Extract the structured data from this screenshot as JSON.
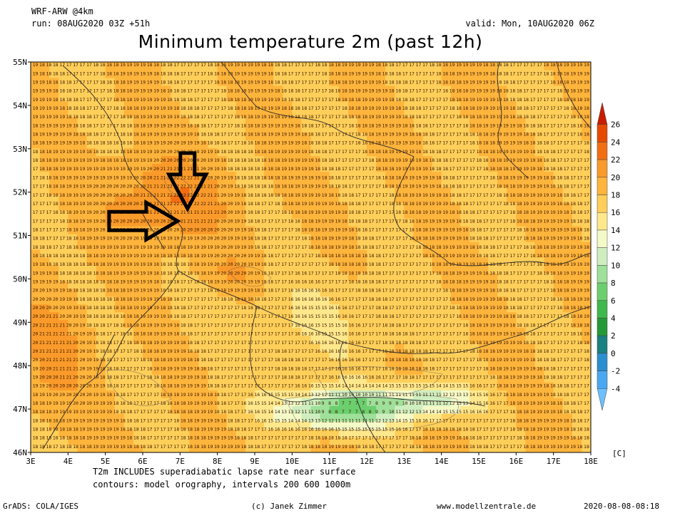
{
  "header": {
    "model": "WRF-ARW @4km",
    "run": "run: 08AUG2020 03Z +51h",
    "valid": "valid: Mon, 10AUG2020 06Z",
    "title": "Minimum temperature 2m (past 12h)"
  },
  "notes": {
    "line1": "T2m INCLUDES superadiabatic lapse rate near surface",
    "line2": "contours: model orography, intervals 200 600 1000m"
  },
  "footer": {
    "software": "GrADS: COLA/IGES",
    "copyright": "(c) Janek Zimmer",
    "website": "www.modellzentrale.de",
    "timestamp": "2020-08-08-08:18"
  },
  "map": {
    "lon_labels": [
      "3E",
      "4E",
      "5E",
      "6E",
      "7E",
      "8E",
      "9E",
      "10E",
      "11E",
      "12E",
      "13E",
      "14E",
      "15E",
      "16E",
      "17E",
      "18E"
    ],
    "lat_labels": [
      "55N",
      "54N",
      "53N",
      "52N",
      "51N",
      "50N",
      "49N",
      "48N",
      "47N",
      "46N"
    ],
    "lon_range": [
      3,
      18
    ],
    "lat_range": [
      46,
      55
    ],
    "arrows": [
      {
        "direction": "down",
        "lon": 7.2,
        "lat": 52.9
      },
      {
        "direction": "right",
        "lon": 5.1,
        "lat": 51.4
      }
    ]
  },
  "colorbar": {
    "unit": "[C]",
    "levels": [
      "26",
      "24",
      "22",
      "20",
      "18",
      "16",
      "14",
      "12",
      "10",
      "8",
      "6",
      "4",
      "2",
      "0",
      "-2",
      "-4"
    ],
    "colors": [
      "#c81e00",
      "#e64a00",
      "#f36e12",
      "#fa9a2a",
      "#ffb43c",
      "#ffcf5a",
      "#ffe88c",
      "#f4f9c8",
      "#cfeec0",
      "#9fe09a",
      "#6ccf6e",
      "#3fb84d",
      "#239a37",
      "#1a8080",
      "#2a8fd0",
      "#4aa8f0",
      "#6cc0ff"
    ]
  }
}
